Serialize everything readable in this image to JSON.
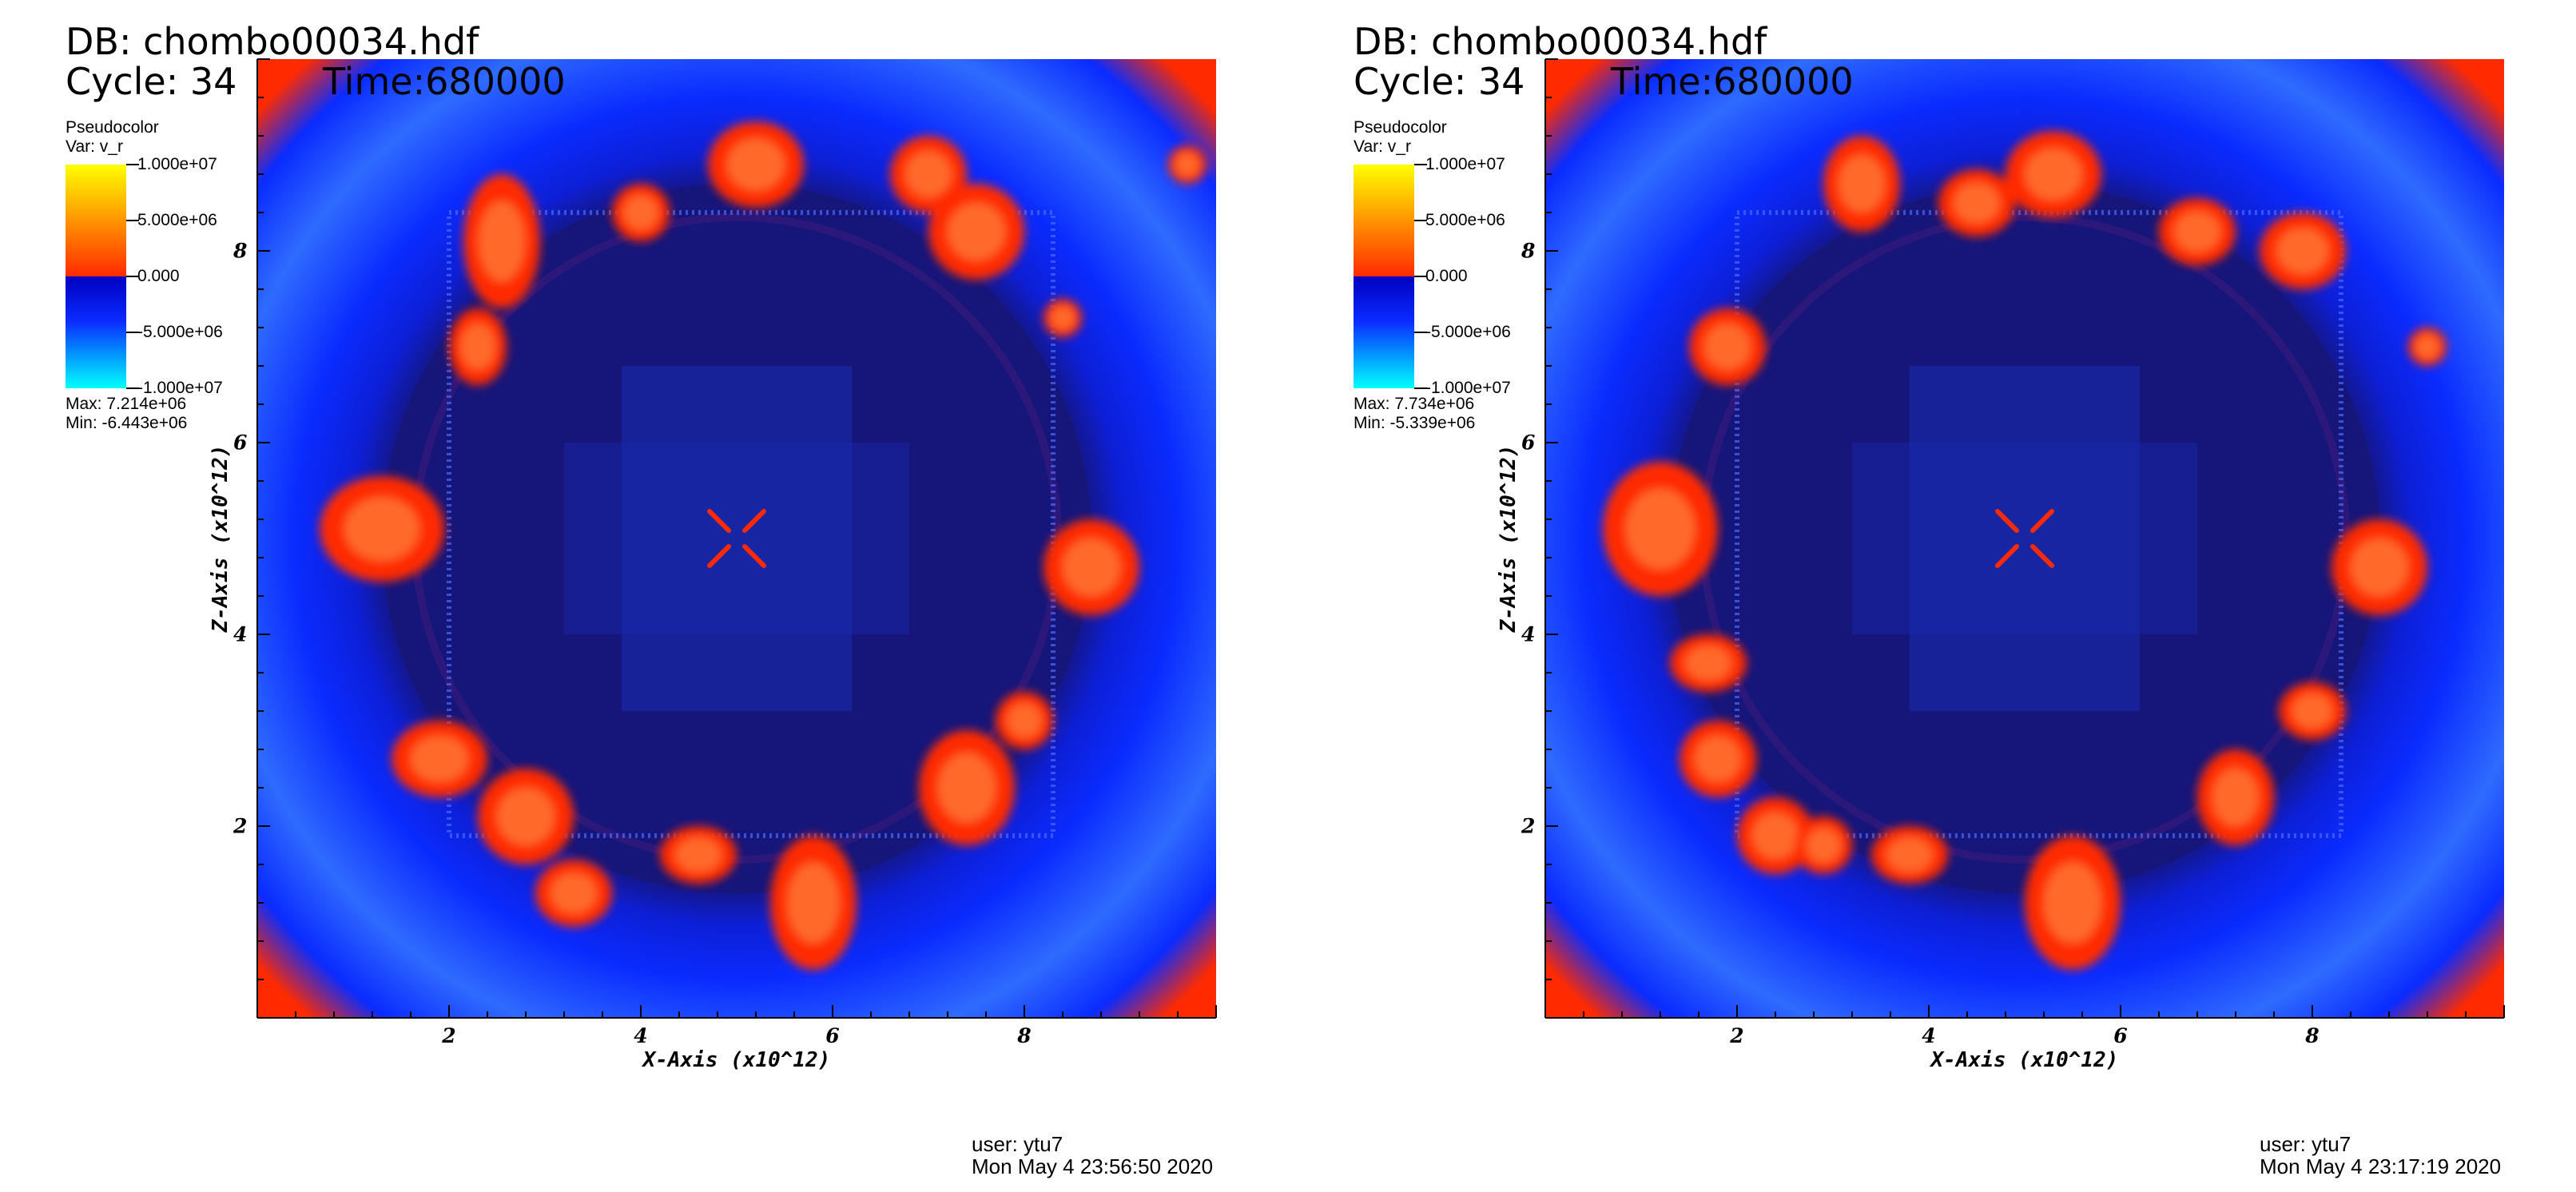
{
  "colors": {
    "deep": "#15157a",
    "blue": "#0a2bff",
    "blue_light": "#2f6bff",
    "red": "#ff2a00",
    "orange": "#ff6a2a",
    "cyan": "#00ffff",
    "yellow": "#ffff00"
  },
  "chart_data": [
    {
      "type": "heatmap",
      "db_label": "DB: chombo00034.hdf",
      "cycle_label": "Cycle: 34",
      "time_label": "Time:680000",
      "plot_type": "Pseudocolor",
      "var_label": "Var: v_r",
      "colorbar_ticks": [
        "1.000e+07",
        "5.000e+06",
        "0.000",
        "-5.000e+06",
        "-1.000e+07"
      ],
      "colorbar_range": [
        -10000000,
        10000000
      ],
      "max_label": "Max:  7.214e+06",
      "min_label": "Min: -6.443e+06",
      "xlabel": "X-Axis (x10^12)",
      "ylabel": "Z-Axis (x10^12)",
      "x_ticks": [
        "2",
        "4",
        "6",
        "8"
      ],
      "y_ticks": [
        "2",
        "4",
        "6",
        "8"
      ],
      "xlim": [
        0,
        10
      ],
      "ylim": [
        0,
        10
      ],
      "user_label": "user: ytu7",
      "date_label": "Mon May  4 23:56:50 2020"
    },
    {
      "type": "heatmap",
      "db_label": "DB: chombo00034.hdf",
      "cycle_label": "Cycle: 34",
      "time_label": "Time:680000",
      "plot_type": "Pseudocolor",
      "var_label": "Var: v_r",
      "colorbar_ticks": [
        "1.000e+07",
        "5.000e+06",
        "0.000",
        "-5.000e+06",
        "-1.000e+07"
      ],
      "colorbar_range": [
        -10000000,
        10000000
      ],
      "max_label": "Max:  7.734e+06",
      "min_label": "Min: -5.339e+06",
      "xlabel": "X-Axis (x10^12)",
      "ylabel": "Z-Axis (x10^12)",
      "x_ticks": [
        "2",
        "4",
        "6",
        "8"
      ],
      "y_ticks": [
        "2",
        "4",
        "6",
        "8"
      ],
      "xlim": [
        0,
        10
      ],
      "ylim": [
        0,
        10
      ],
      "user_label": "user: ytu7",
      "date_label": "Mon May  4 23:17:19 2020"
    }
  ]
}
